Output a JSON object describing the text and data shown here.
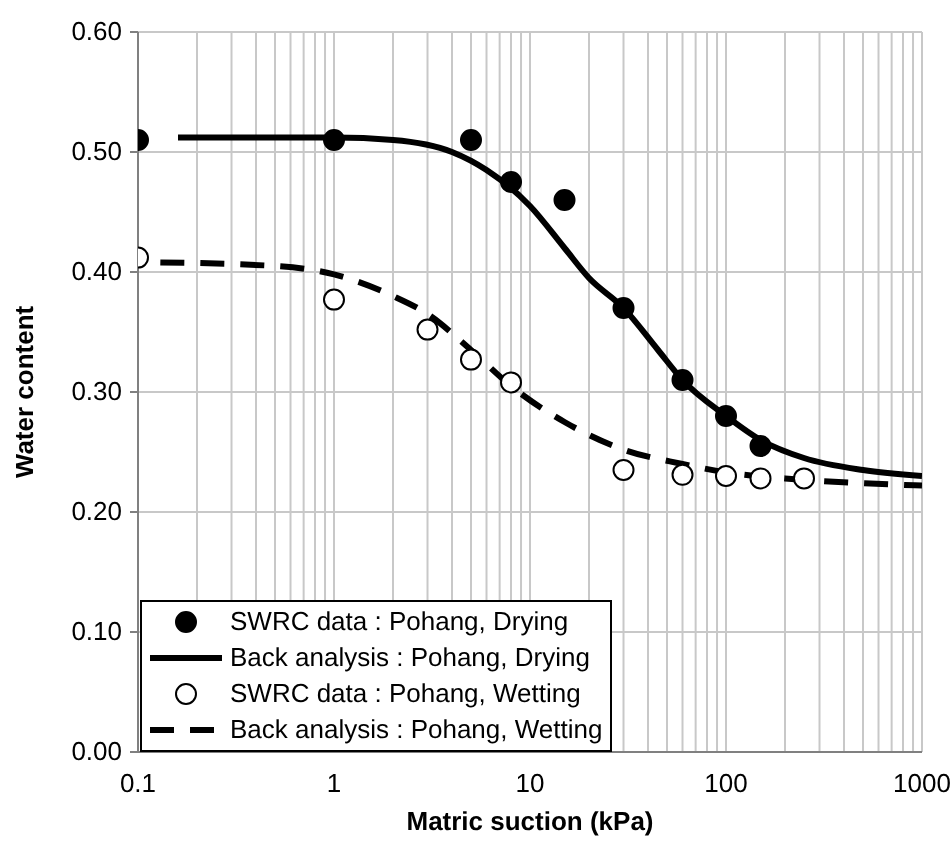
{
  "chart_data": {
    "type": "line",
    "xlabel": "Matric suction  (kPa)",
    "ylabel": "Water content",
    "log": "x",
    "grid": true,
    "legend": "bottom left",
    "xlim": [
      0.1,
      1000
    ],
    "xticks": [
      {
        "value": 0.1,
        "label": "0.1"
      },
      {
        "value": 0.2,
        "label": null
      },
      {
        "value": 0.3,
        "label": null
      },
      {
        "value": 0.4,
        "label": null
      },
      {
        "value": 0.5,
        "label": null
      },
      {
        "value": 0.6,
        "label": null
      },
      {
        "value": 0.7,
        "label": null
      },
      {
        "value": 0.8,
        "label": null
      },
      {
        "value": 0.9,
        "label": null
      },
      1,
      {
        "value": 2,
        "label": null
      },
      {
        "value": 3,
        "label": null
      },
      {
        "value": 4,
        "label": null
      },
      {
        "value": 5,
        "label": null
      },
      {
        "value": 6,
        "label": null
      },
      {
        "value": 7,
        "label": null
      },
      {
        "value": 8,
        "label": null
      },
      {
        "value": 9,
        "label": null
      },
      10,
      {
        "value": 20,
        "label": null
      },
      {
        "value": 30,
        "label": null
      },
      {
        "value": 40,
        "label": null
      },
      {
        "value": 50,
        "label": null
      },
      {
        "value": 60,
        "label": null
      },
      {
        "value": 70,
        "label": null
      },
      {
        "value": 80,
        "label": null
      },
      {
        "value": 90,
        "label": null
      },
      100,
      {
        "value": 200,
        "label": null
      },
      {
        "value": 300,
        "label": null
      },
      {
        "value": 400,
        "label": null
      },
      {
        "value": 500,
        "label": null
      },
      {
        "value": 600,
        "label": null
      },
      {
        "value": 700,
        "label": null
      },
      {
        "value": 800,
        "label": null
      },
      {
        "value": 900,
        "label": null
      },
      1000
    ],
    "ylim": [
      0,
      0.6
    ],
    "yticks": [
      {
        "value": 0,
        "label": "0.00"
      },
      {
        "value": 0.1,
        "label": "0.10"
      },
      {
        "value": 0.2,
        "label": "0.20"
      },
      {
        "value": 0.3,
        "label": "0.30"
      },
      {
        "value": 0.4,
        "label": "0.40"
      },
      {
        "value": 0.5,
        "label": "0.50"
      },
      {
        "value": 0.6,
        "label": "0.60"
      }
    ],
    "series": [
      {
        "name": "SWRC data : Pohang, Drying",
        "type": "scatter",
        "marker": "circle",
        "color": "#000000",
        "x": [
          0.1,
          1,
          5,
          8,
          15,
          30,
          60,
          100,
          150
        ],
        "values": [
          0.51,
          0.51,
          0.51,
          0.475,
          0.46,
          0.37,
          0.31,
          0.28,
          0.255
        ]
      },
      {
        "name": "Back analysis : Pohang, Drying",
        "type": "line",
        "line_style": "solid",
        "color": "#000000",
        "x": [
          0.16,
          1,
          2,
          4,
          6,
          10,
          15,
          20,
          30,
          45,
          60,
          100,
          150,
          250,
          500,
          1000
        ],
        "values": [
          0.512,
          0.512,
          0.51,
          0.5,
          0.485,
          0.455,
          0.42,
          0.395,
          0.37,
          0.335,
          0.31,
          0.28,
          0.26,
          0.245,
          0.235,
          0.23
        ]
      },
      {
        "name": "SWRC data : Pohang, Wetting",
        "type": "scatter",
        "marker": "circle",
        "color": "#ffffff",
        "x": [
          0.1,
          1,
          3,
          5,
          8,
          30,
          60,
          100,
          150,
          250
        ],
        "values": [
          0.412,
          0.377,
          0.352,
          0.327,
          0.308,
          0.235,
          0.231,
          0.23,
          0.228,
          0.228
        ]
      },
      {
        "name": "Back analysis : Pohang, Wetting",
        "type": "line",
        "line_style": "dashed",
        "color": "#000000",
        "x": [
          0.13,
          0.5,
          1,
          2,
          3,
          5,
          8,
          15,
          30,
          60,
          100,
          200,
          500,
          1000
        ],
        "values": [
          0.408,
          0.405,
          0.398,
          0.38,
          0.365,
          0.335,
          0.305,
          0.275,
          0.252,
          0.24,
          0.233,
          0.228,
          0.224,
          0.222
        ]
      }
    ]
  }
}
